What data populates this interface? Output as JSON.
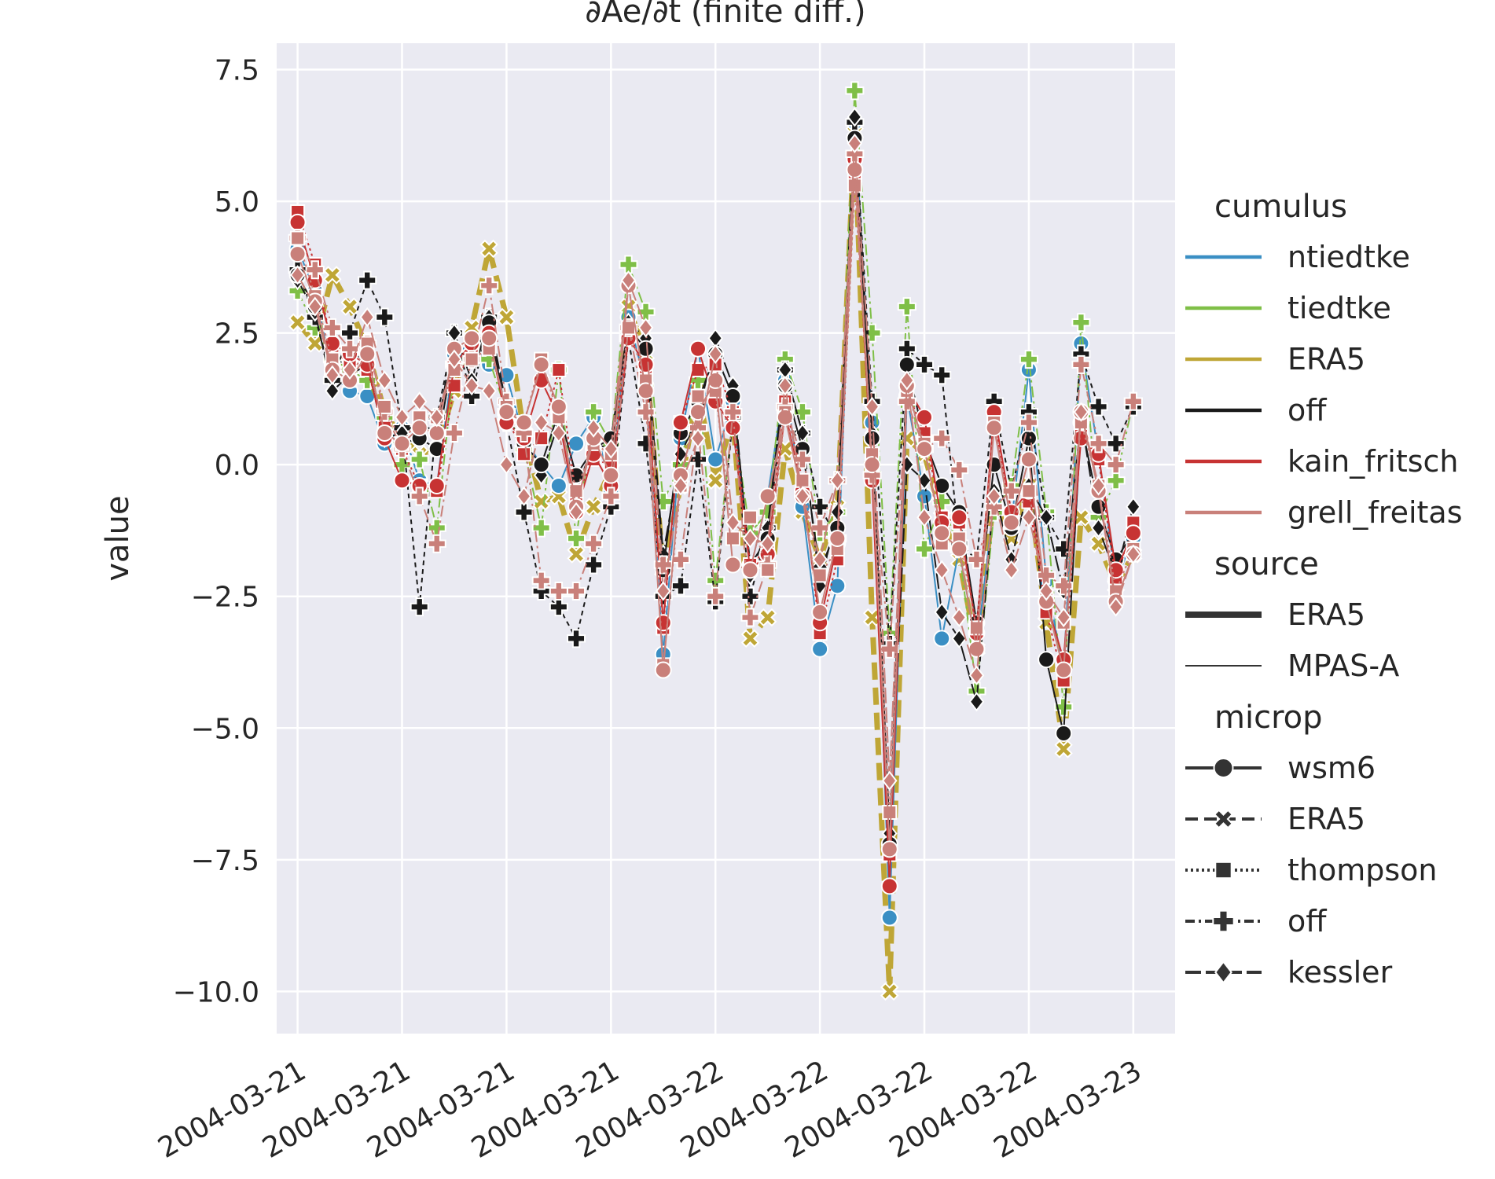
{
  "chart_data": {
    "type": "line",
    "title": "∂Ae/∂t (finite diff.)",
    "xlabel": "",
    "ylabel": "value",
    "ylim": [
      -10.8,
      8.0
    ],
    "xlim": [
      -0.2,
      8.4
    ],
    "yticks": [
      7.5,
      5.0,
      2.5,
      0.0,
      -2.5,
      -5.0,
      -7.5,
      -10.0
    ],
    "ytick_labels": [
      "7.5",
      "5.0",
      "2.5",
      "0.0",
      "−2.5",
      "−5.0",
      "−7.5",
      "−10.0"
    ],
    "xticks": [
      0,
      1,
      2,
      3,
      4,
      5,
      6,
      7,
      8
    ],
    "xtick_labels": [
      "2004-03-21",
      "2004-03-21",
      "2004-03-21",
      "2004-03-21",
      "2004-03-22",
      "2004-03-22",
      "2004-03-22",
      "2004-03-22",
      "2004-03-23"
    ],
    "grid": true,
    "legend_position": "right",
    "legend": {
      "cumulus": {
        "title": "cumulus",
        "entries": [
          {
            "label": "ntiedtke",
            "color": "#3a8fc4"
          },
          {
            "label": "tiedtke",
            "color": "#7fbf47"
          },
          {
            "label": "ERA5",
            "color": "#bfa636"
          },
          {
            "label": "off",
            "color": "#1a1a1a"
          },
          {
            "label": "kain_fritsch",
            "color": "#c73333"
          },
          {
            "label": "grell_freitas",
            "color": "#c9807a"
          }
        ]
      },
      "source": {
        "title": "source",
        "entries": [
          {
            "label": "ERA5",
            "width": "thick"
          },
          {
            "label": "MPAS-A",
            "width": "thin"
          }
        ]
      },
      "microp": {
        "title": "microp",
        "entries": [
          {
            "label": "wsm6",
            "dash": "solid",
            "marker": "circle"
          },
          {
            "label": "ERA5",
            "dash": "dashed",
            "marker": "x"
          },
          {
            "label": "thompson",
            "dash": "dotted",
            "marker": "square"
          },
          {
            "label": "off",
            "dash": "dashdot",
            "marker": "plus"
          },
          {
            "label": "kessler",
            "dash": "longdash",
            "marker": "diamond"
          }
        ]
      }
    },
    "x": [
      0,
      0.167,
      0.333,
      0.5,
      0.667,
      0.833,
      1.0,
      1.167,
      1.333,
      1.5,
      1.667,
      1.833,
      2.0,
      2.167,
      2.333,
      2.5,
      2.667,
      2.833,
      3.0,
      3.167,
      3.333,
      3.5,
      3.667,
      3.833,
      4.0,
      4.167,
      4.333,
      4.5,
      4.667,
      4.833,
      5.0,
      5.167,
      5.333,
      5.5,
      5.667,
      5.833,
      6.0,
      6.167,
      6.333,
      6.5,
      6.667,
      6.833,
      7.0,
      7.167,
      7.333,
      7.5,
      7.667,
      7.833,
      8.0
    ],
    "series": [
      {
        "cumulus": "ERA5",
        "source": "ERA5",
        "microp": "ERA5",
        "color": "#bfa636",
        "width": 7,
        "dash": "22 10",
        "marker": "x",
        "values": [
          2.7,
          2.3,
          3.6,
          3.0,
          2.2,
          1.0,
          0.5,
          0.2,
          0.3,
          1.4,
          2.6,
          4.1,
          2.8,
          0.6,
          -0.7,
          -0.6,
          -1.7,
          -0.8,
          -0.1,
          3.0,
          2.1,
          -2.0,
          -0.4,
          1.4,
          -0.3,
          0.9,
          -3.3,
          -2.9,
          0.3,
          -0.9,
          -1.8,
          -0.8,
          6.3,
          -2.9,
          -10.0,
          0.5,
          0.2,
          -1.0,
          -1.8,
          -3.5,
          -0.6,
          -1.4,
          -0.4,
          -3.0,
          -5.4,
          -1.0,
          -1.5,
          -2.3,
          -1.7
        ]
      },
      {
        "cumulus": "ntiedtke",
        "source": "MPAS-A",
        "microp": "wsm6",
        "color": "#3a8fc4",
        "width": 2,
        "dash": "",
        "marker": "circle",
        "values": [
          4.1,
          3.3,
          1.7,
          1.4,
          1.3,
          0.4,
          0.7,
          -0.3,
          -0.4,
          2.1,
          2.3,
          1.9,
          1.7,
          0.5,
          0.0,
          -0.4,
          0.4,
          0.9,
          -0.5,
          2.8,
          1.5,
          -3.6,
          0.5,
          2.2,
          0.1,
          1.2,
          -2.0,
          -0.6,
          1.6,
          -0.8,
          -3.5,
          -2.3,
          6.5,
          0.8,
          -8.6,
          1.3,
          -0.6,
          -3.3,
          -1.6,
          -3.5,
          -0.7,
          -1.1,
          1.8,
          -2.2,
          -3.9,
          2.3,
          0.2,
          -2.2,
          -1.4
        ]
      },
      {
        "cumulus": "tiedtke",
        "source": "MPAS-A",
        "microp": "off",
        "color": "#7fbf47",
        "width": 2,
        "dash": "14 5 3 5",
        "marker": "plus",
        "values": [
          3.3,
          2.6,
          2.0,
          1.8,
          1.6,
          0.9,
          0.0,
          0.1,
          -1.2,
          1.9,
          2.1,
          2.0,
          1.0,
          0.3,
          -1.2,
          1.8,
          -1.4,
          1.0,
          0.4,
          3.8,
          2.9,
          -0.7,
          0.0,
          1.6,
          -2.2,
          0.9,
          -1.3,
          -0.9,
          2.0,
          1.0,
          -1.3,
          -0.9,
          7.1,
          2.5,
          -3.2,
          3.0,
          -1.6,
          -0.7,
          -1.6,
          -4.3,
          -0.9,
          -0.4,
          2.0,
          -0.9,
          -4.6,
          2.7,
          -1.0,
          -0.3,
          1.2
        ]
      },
      {
        "cumulus": "off",
        "source": "MPAS-A",
        "microp": "off",
        "color": "#1a1a1a",
        "width": 2,
        "dash": "6 5",
        "marker": "plus",
        "values": [
          3.7,
          2.8,
          1.6,
          2.5,
          3.5,
          2.8,
          0.7,
          -2.7,
          0.9,
          2.5,
          1.3,
          2.8,
          0.8,
          -0.9,
          -2.4,
          -2.7,
          -3.3,
          -1.9,
          -0.8,
          2.4,
          0.4,
          -2.5,
          -2.3,
          0.1,
          -2.6,
          0.9,
          -2.5,
          -1.2,
          1.8,
          0.6,
          -0.8,
          -1.4,
          6.5,
          1.2,
          -3.4,
          2.2,
          1.9,
          1.7,
          -1.5,
          -1.8,
          1.2,
          -0.5,
          1.0,
          -1.0,
          -1.6,
          2.1,
          1.1,
          0.4,
          1.1
        ]
      },
      {
        "cumulus": "off",
        "source": "MPAS-A",
        "microp": "kessler",
        "color": "#1a1a1a",
        "width": 2,
        "dash": "20 5",
        "marker": "diamond",
        "values": [
          3.5,
          2.9,
          1.4,
          1.7,
          1.9,
          0.5,
          0.6,
          0.8,
          0.6,
          2.5,
          1.6,
          2.8,
          1.1,
          0.3,
          -0.2,
          0.8,
          -0.5,
          0.4,
          0.3,
          2.7,
          2.4,
          -1.7,
          0.2,
          0.9,
          2.4,
          1.5,
          -2.1,
          -1.2,
          1.8,
          0.6,
          -2.3,
          -0.9,
          6.6,
          0.6,
          -7.0,
          0.0,
          -0.3,
          -2.8,
          -3.3,
          -4.5,
          -0.5,
          -1.8,
          -0.4,
          -1.0,
          -2.4,
          0.9,
          -1.2,
          -2.1,
          -0.8
        ]
      },
      {
        "cumulus": "off",
        "source": "MPAS-A",
        "microp": "wsm6",
        "color": "#1a1a1a",
        "width": 2,
        "dash": "",
        "marker": "circle",
        "values": [
          3.6,
          3.0,
          1.9,
          2.0,
          2.1,
          0.6,
          0.4,
          0.5,
          0.3,
          2.2,
          2.0,
          2.7,
          0.9,
          0.4,
          0.0,
          1.0,
          -0.2,
          0.3,
          0.5,
          2.6,
          2.2,
          -2.0,
          0.6,
          1.2,
          2.1,
          1.3,
          -1.9,
          -1.4,
          1.5,
          0.3,
          -2.0,
          -1.2,
          6.2,
          0.5,
          -7.2,
          1.9,
          0.5,
          -0.4,
          -0.9,
          -3.0,
          0.0,
          -1.2,
          0.5,
          -3.7,
          -5.1,
          0.8,
          -0.8,
          -1.8,
          -1.3
        ]
      },
      {
        "cumulus": "kain_fritsch",
        "source": "MPAS-A",
        "microp": "thompson",
        "color": "#c73333",
        "width": 2,
        "dash": "3 4",
        "marker": "square",
        "values": [
          4.8,
          3.8,
          2.2,
          1.9,
          1.8,
          0.7,
          0.3,
          -0.4,
          -0.5,
          1.5,
          2.2,
          2.4,
          0.9,
          0.2,
          0.5,
          1.8,
          -0.6,
          0.1,
          0.0,
          2.5,
          1.8,
          -3.1,
          0.8,
          1.8,
          1.9,
          1.0,
          -1.9,
          -1.6,
          1.2,
          -0.3,
          -3.2,
          -1.8,
          5.5,
          -0.2,
          -7.4,
          1.4,
          0.6,
          -1.0,
          -1.1,
          -3.1,
          0.9,
          -1.0,
          -0.7,
          -2.8,
          -4.1,
          0.6,
          0.1,
          -2.2,
          -1.1
        ]
      },
      {
        "cumulus": "kain_fritsch",
        "source": "MPAS-A",
        "microp": "wsm6",
        "color": "#c73333",
        "width": 2,
        "dash": "",
        "marker": "circle",
        "values": [
          4.6,
          3.5,
          2.3,
          2.1,
          1.9,
          0.5,
          -0.3,
          -0.4,
          -0.4,
          1.9,
          2.3,
          2.5,
          0.8,
          0.5,
          1.6,
          0.9,
          -0.9,
          0.2,
          -0.4,
          2.4,
          1.9,
          -3.0,
          0.8,
          2.2,
          1.2,
          0.7,
          -2.0,
          -1.7,
          1.0,
          -0.5,
          -3.0,
          -1.5,
          5.8,
          -0.3,
          -8.0,
          1.5,
          0.9,
          -1.1,
          -1.0,
          -3.2,
          1.0,
          -0.9,
          -0.5,
          -2.6,
          -3.7,
          0.5,
          0.2,
          -2.0,
          -1.3
        ]
      },
      {
        "cumulus": "grell_freitas",
        "source": "MPAS-A",
        "microp": "off",
        "color": "#c9807a",
        "width": 2,
        "dash": "14 5 3 5",
        "marker": "plus",
        "values": [
          4.3,
          3.7,
          2.6,
          2.2,
          2.3,
          1.0,
          0.3,
          -0.6,
          -1.5,
          0.6,
          2.0,
          3.4,
          1.2,
          0.6,
          -2.2,
          -2.4,
          -2.4,
          -1.5,
          -0.6,
          2.6,
          1.0,
          -1.9,
          -1.8,
          0.7,
          -2.5,
          1.0,
          -2.9,
          -1.9,
          1.1,
          0.1,
          -1.2,
          -0.3,
          5.9,
          -0.2,
          -3.5,
          1.2,
          0.3,
          0.5,
          -0.1,
          -1.8,
          -0.8,
          -0.5,
          0.8,
          -2.1,
          -2.3,
          1.9,
          0.4,
          0.0,
          1.2
        ]
      },
      {
        "cumulus": "grell_freitas",
        "source": "MPAS-A",
        "microp": "thompson",
        "color": "#c9807a",
        "width": 2,
        "dash": "3 4",
        "marker": "square",
        "values": [
          4.3,
          3.2,
          2.0,
          1.6,
          2.3,
          1.1,
          0.4,
          0.9,
          0.9,
          1.8,
          2.0,
          2.2,
          1.1,
          0.8,
          2.0,
          0.9,
          -0.5,
          0.4,
          0.2,
          2.6,
          1.6,
          -3.8,
          -0.4,
          1.3,
          1.4,
          -1.4,
          -1.0,
          -2.0,
          1.0,
          -0.3,
          -2.1,
          -1.6,
          5.3,
          0.2,
          -6.6,
          1.4,
          0.4,
          -1.5,
          -1.4,
          -3.1,
          0.8,
          -1.1,
          -0.5,
          -2.5,
          -3.0,
          0.8,
          -0.4,
          -2.4,
          -1.6
        ]
      },
      {
        "cumulus": "grell_freitas",
        "source": "MPAS-A",
        "microp": "wsm6",
        "color": "#c9807a",
        "width": 2,
        "dash": "",
        "marker": "circle",
        "values": [
          4.0,
          3.1,
          1.8,
          1.6,
          2.1,
          0.6,
          0.4,
          0.7,
          0.6,
          2.2,
          2.4,
          2.4,
          1.0,
          0.8,
          1.9,
          1.1,
          -0.8,
          0.5,
          -0.2,
          3.4,
          1.4,
          -3.9,
          -0.2,
          1.0,
          1.6,
          -1.9,
          -2.0,
          -0.6,
          0.9,
          -0.6,
          -2.8,
          -1.4,
          5.6,
          0.0,
          -7.3,
          1.5,
          0.3,
          -1.3,
          -1.6,
          -3.5,
          0.7,
          -1.1,
          0.1,
          -2.6,
          -3.9,
          1.0,
          -0.5,
          -2.6,
          -1.7
        ]
      },
      {
        "cumulus": "grell_freitas",
        "source": "MPAS-A",
        "microp": "kessler",
        "color": "#c9807a",
        "width": 2,
        "dash": "20 5",
        "marker": "diamond",
        "values": [
          3.6,
          3.0,
          1.7,
          1.8,
          2.8,
          1.6,
          0.9,
          1.2,
          0.9,
          2.0,
          1.5,
          1.4,
          0.0,
          -0.6,
          0.8,
          0.6,
          -0.9,
          0.7,
          0.3,
          3.5,
          2.6,
          -2.4,
          -0.4,
          0.5,
          2.1,
          -1.1,
          -1.4,
          -1.5,
          1.5,
          -0.6,
          -1.8,
          -0.3,
          6.1,
          1.1,
          -6.0,
          1.6,
          -1.0,
          -2.0,
          -2.9,
          -4.0,
          -0.6,
          -2.0,
          -1.0,
          -2.4,
          -2.9,
          1.0,
          -0.4,
          -2.7,
          -1.7
        ]
      }
    ]
  }
}
